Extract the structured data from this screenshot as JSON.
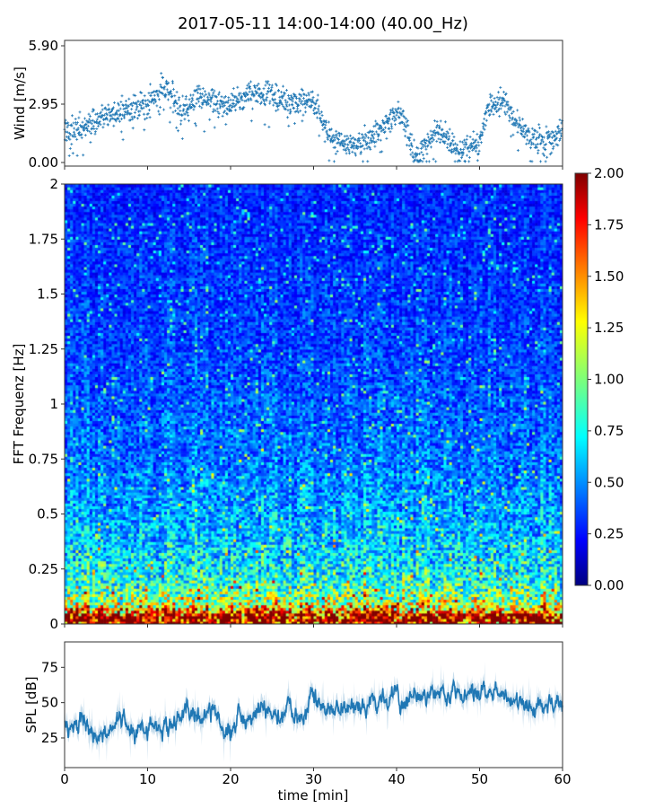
{
  "chart_data": [
    {
      "type": "scatter",
      "title": "2017-05-11 14:00-14:00 (40.00_Hz)",
      "xlabel": "",
      "ylabel": "Wind [m/s]",
      "xlim": [
        0,
        60
      ],
      "ylim": [
        0,
        5.9
      ],
      "yticks": [
        "0.00",
        "2.95",
        "5.90"
      ],
      "color": "#1f77b4",
      "marker": "+",
      "minute_mean_wind": [
        1.5,
        1.6,
        1.7,
        1.9,
        2.2,
        2.3,
        2.4,
        2.6,
        2.7,
        2.8,
        3.0,
        3.3,
        3.9,
        3.4,
        2.6,
        2.7,
        3.4,
        3.2,
        3.0,
        2.9,
        2.9,
        3.2,
        3.4,
        3.5,
        3.3,
        3.4,
        3.2,
        3.0,
        3.0,
        3.0,
        3.1,
        2.2,
        1.2,
        1.0,
        0.9,
        0.9,
        1.0,
        1.3,
        1.6,
        2.0,
        2.5,
        2.0,
        0.4,
        0.5,
        1.3,
        1.5,
        1.3,
        0.7,
        0.6,
        0.9,
        0.8,
        3.0,
        2.8,
        3.2,
        2.1,
        1.8,
        1.3,
        1.1,
        1.0,
        1.2,
        1.5
      ]
    },
    {
      "type": "heatmap",
      "xlabel": "",
      "ylabel": "FFT Frequenz [Hz]",
      "xlim": [
        0,
        60
      ],
      "ylim": [
        0,
        2
      ],
      "yticks": [
        "0",
        "0.25",
        "0.5",
        "0.75",
        "1",
        "1.25",
        "1.5",
        "1.75",
        "2"
      ],
      "colormap": "jet",
      "clim": [
        0,
        2
      ],
      "colorbar_ticks": [
        "0.00",
        "0.25",
        "0.50",
        "0.75",
        "1.00",
        "1.25",
        "1.50",
        "1.75",
        "2.00"
      ],
      "mean_profile_freq_value": [
        [
          0,
          2.0
        ],
        [
          0.04,
          2.0
        ],
        [
          0.06,
          1.5
        ],
        [
          0.1,
          1.1
        ],
        [
          0.2,
          0.8
        ],
        [
          0.4,
          0.62
        ],
        [
          0.75,
          0.48
        ],
        [
          1.25,
          0.38
        ],
        [
          2,
          0.32
        ]
      ]
    },
    {
      "type": "area",
      "xlabel": "time [min]",
      "ylabel": "SPL [dB]",
      "xlim": [
        0,
        60
      ],
      "ylim": [
        4,
        93
      ],
      "xticks": [
        "0",
        "10",
        "20",
        "30",
        "40",
        "50",
        "60"
      ],
      "yticks": [
        "25",
        "50",
        "75"
      ],
      "color": "#1f77b4",
      "minute_mean_spl": [
        35,
        32,
        40,
        29,
        30,
        28,
        33,
        38,
        28,
        27,
        30,
        34,
        35,
        37,
        40,
        44,
        40,
        38,
        45,
        32,
        28,
        40,
        35,
        42,
        45,
        38,
        40,
        50,
        38,
        45,
        55,
        48,
        42,
        48,
        50,
        47,
        50,
        52,
        50,
        52,
        55,
        50,
        58,
        56,
        55,
        57,
        56,
        62,
        55,
        58,
        55,
        57,
        54,
        55,
        52,
        53,
        50,
        48,
        47,
        45,
        50
      ]
    }
  ]
}
